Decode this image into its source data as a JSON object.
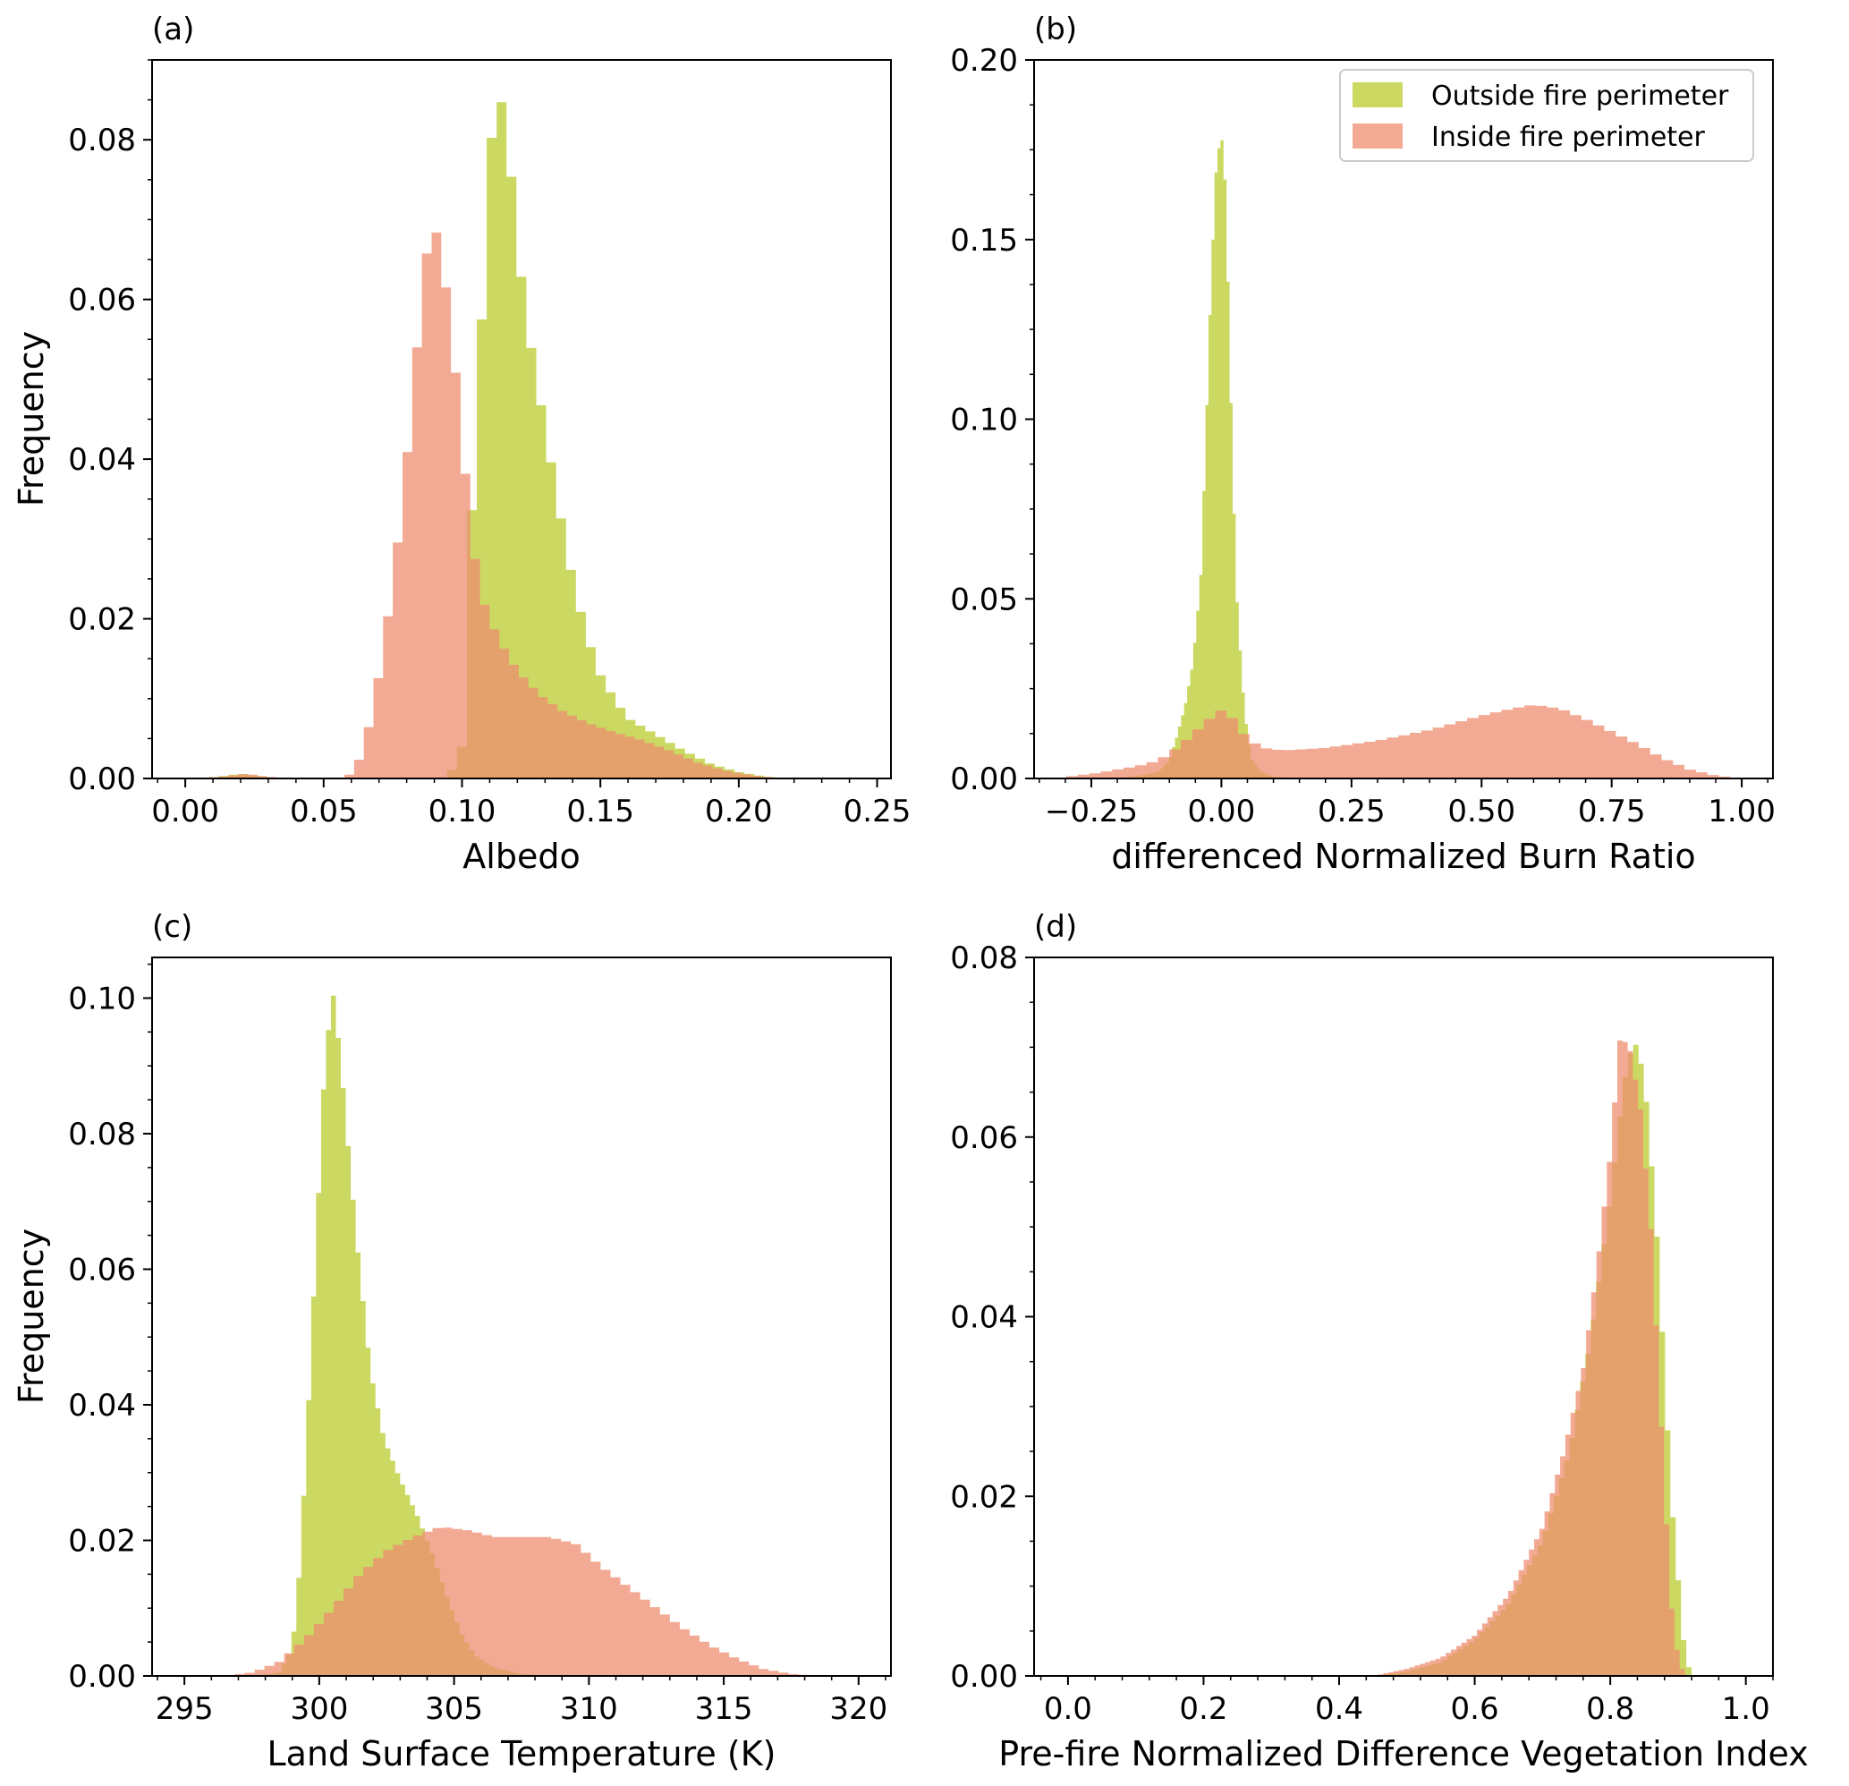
{
  "colors": {
    "outside": "#b9cc2e",
    "inside": "#ee8d70",
    "outside_opacity": 0.75,
    "inside_opacity": 0.75
  },
  "legend": {
    "outside_label": "Outside fire perimeter",
    "inside_label": "Inside fire perimeter",
    "placement": "top-right of panel (b)"
  },
  "chart_data": [
    {
      "panel": "(a)",
      "type": "histogram",
      "xlabel": "Albedo",
      "ylabel": "Frequency",
      "xlim": [
        -0.012,
        0.255
      ],
      "ylim": [
        0,
        0.09
      ],
      "xticks": [
        0.0,
        0.05,
        0.1,
        0.15,
        0.2,
        0.25
      ],
      "xtick_labels": [
        "0.00",
        "0.05",
        "0.10",
        "0.15",
        "0.20",
        "0.25"
      ],
      "yticks": [
        0.0,
        0.02,
        0.04,
        0.06,
        0.08
      ],
      "ytick_labels": [
        "0.00",
        "0.02",
        "0.04",
        "0.06",
        "0.08"
      ],
      "series": [
        {
          "name": "Outside fire perimeter",
          "key": "outside",
          "points": [
            [
              0.005,
              0
            ],
            [
              0.012,
              0.0002
            ],
            [
              0.02,
              0.0006
            ],
            [
              0.028,
              0.0002
            ],
            [
              0.035,
              0
            ],
            [
              0.06,
              0
            ],
            [
              0.095,
              0
            ],
            [
              0.1,
              0.004
            ],
            [
              0.103,
              0.03
            ],
            [
              0.106,
              0.05
            ],
            [
              0.109,
              0.07
            ],
            [
              0.111,
              0.082
            ],
            [
              0.113,
              0.086
            ],
            [
              0.115,
              0.084
            ],
            [
              0.118,
              0.075
            ],
            [
              0.121,
              0.064
            ],
            [
              0.125,
              0.054
            ],
            [
              0.13,
              0.044
            ],
            [
              0.135,
              0.034
            ],
            [
              0.14,
              0.025
            ],
            [
              0.145,
              0.018
            ],
            [
              0.15,
              0.013
            ],
            [
              0.155,
              0.01
            ],
            [
              0.16,
              0.0075
            ],
            [
              0.17,
              0.0055
            ],
            [
              0.18,
              0.0035
            ],
            [
              0.19,
              0.0018
            ],
            [
              0.2,
              0.0008
            ],
            [
              0.21,
              0.0002
            ],
            [
              0.22,
              0
            ]
          ]
        },
        {
          "name": "Inside fire perimeter",
          "key": "inside",
          "points": [
            [
              0.005,
              0
            ],
            [
              0.015,
              0.0003
            ],
            [
              0.022,
              0.0006
            ],
            [
              0.03,
              0.0002
            ],
            [
              0.04,
              0
            ],
            [
              0.058,
              0
            ],
            [
              0.062,
              0.0015
            ],
            [
              0.066,
              0.006
            ],
            [
              0.07,
              0.013
            ],
            [
              0.074,
              0.022
            ],
            [
              0.078,
              0.033
            ],
            [
              0.082,
              0.047
            ],
            [
              0.085,
              0.059
            ],
            [
              0.088,
              0.068
            ],
            [
              0.09,
              0.0698
            ],
            [
              0.092,
              0.066
            ],
            [
              0.095,
              0.06
            ],
            [
              0.098,
              0.05
            ],
            [
              0.101,
              0.039
            ],
            [
              0.104,
              0.029
            ],
            [
              0.107,
              0.023
            ],
            [
              0.11,
              0.02
            ],
            [
              0.114,
              0.017
            ],
            [
              0.12,
              0.0135
            ],
            [
              0.128,
              0.0105
            ],
            [
              0.136,
              0.0085
            ],
            [
              0.145,
              0.007
            ],
            [
              0.155,
              0.0058
            ],
            [
              0.165,
              0.0048
            ],
            [
              0.175,
              0.0035
            ],
            [
              0.185,
              0.002
            ],
            [
              0.195,
              0.001
            ],
            [
              0.205,
              0.0004
            ],
            [
              0.215,
              0
            ]
          ]
        }
      ]
    },
    {
      "panel": "(b)",
      "type": "histogram",
      "xlabel": "differenced Normalized Burn Ratio",
      "ylabel": "",
      "xlim": [
        -0.36,
        1.06
      ],
      "ylim": [
        0,
        0.2
      ],
      "xticks": [
        -0.25,
        0.0,
        0.25,
        0.5,
        0.75,
        1.0
      ],
      "xtick_labels": [
        "−0.25",
        "0.00",
        "0.25",
        "0.50",
        "0.75",
        "1.00"
      ],
      "yticks": [
        0.0,
        0.05,
        0.1,
        0.15,
        0.2
      ],
      "ytick_labels": [
        "0.00",
        "0.05",
        "0.10",
        "0.15",
        "0.20"
      ],
      "series": [
        {
          "name": "Outside fire perimeter",
          "key": "outside",
          "points": [
            [
              -0.2,
              0
            ],
            [
              -0.15,
              0.001
            ],
            [
              -0.12,
              0.002
            ],
            [
              -0.1,
              0.005
            ],
            [
              -0.085,
              0.012
            ],
            [
              -0.07,
              0.02
            ],
            [
              -0.055,
              0.032
            ],
            [
              -0.04,
              0.055
            ],
            [
              -0.03,
              0.095
            ],
            [
              -0.02,
              0.138
            ],
            [
              -0.01,
              0.17
            ],
            [
              0.0,
              0.18
            ],
            [
              0.008,
              0.165
            ],
            [
              0.015,
              0.127
            ],
            [
              0.022,
              0.085
            ],
            [
              0.03,
              0.05
            ],
            [
              0.04,
              0.027
            ],
            [
              0.05,
              0.012
            ],
            [
              0.06,
              0.005
            ],
            [
              0.075,
              0.002
            ],
            [
              0.1,
              0.0005
            ],
            [
              0.15,
              0
            ]
          ]
        },
        {
          "name": "Inside fire perimeter",
          "key": "inside",
          "points": [
            [
              -0.32,
              0
            ],
            [
              -0.28,
              0.0008
            ],
            [
              -0.24,
              0.0015
            ],
            [
              -0.2,
              0.0025
            ],
            [
              -0.16,
              0.0035
            ],
            [
              -0.12,
              0.005
            ],
            [
              -0.08,
              0.009
            ],
            [
              -0.05,
              0.013
            ],
            [
              -0.02,
              0.017
            ],
            [
              0.0,
              0.019
            ],
            [
              0.02,
              0.017
            ],
            [
              0.05,
              0.011
            ],
            [
              0.08,
              0.0085
            ],
            [
              0.12,
              0.0078
            ],
            [
              0.2,
              0.0085
            ],
            [
              0.3,
              0.0105
            ],
            [
              0.4,
              0.0135
            ],
            [
              0.5,
              0.0175
            ],
            [
              0.56,
              0.0195
            ],
            [
              0.6,
              0.0205
            ],
            [
              0.65,
              0.0195
            ],
            [
              0.7,
              0.0165
            ],
            [
              0.75,
              0.013
            ],
            [
              0.8,
              0.0095
            ],
            [
              0.85,
              0.0055
            ],
            [
              0.9,
              0.0025
            ],
            [
              0.95,
              0.0008
            ],
            [
              1.0,
              0
            ]
          ]
        }
      ]
    },
    {
      "panel": "(c)",
      "type": "histogram",
      "xlabel": "Land Surface Temperature (K)",
      "ylabel": "Frequency",
      "xlim": [
        293.8,
        321.2
      ],
      "ylim": [
        0,
        0.106
      ],
      "xticks": [
        295,
        300,
        305,
        310,
        315,
        320
      ],
      "xtick_labels": [
        "295",
        "300",
        "305",
        "310",
        "315",
        "320"
      ],
      "yticks": [
        0.0,
        0.02,
        0.04,
        0.06,
        0.08,
        0.1
      ],
      "ytick_labels": [
        "0.00",
        "0.02",
        "0.04",
        "0.06",
        "0.08",
        "0.10"
      ],
      "series": [
        {
          "name": "Outside fire perimeter",
          "key": "outside",
          "points": [
            [
              297.5,
              0
            ],
            [
              298.5,
              0.0005
            ],
            [
              299.0,
              0.004
            ],
            [
              299.3,
              0.017
            ],
            [
              299.6,
              0.04
            ],
            [
              299.9,
              0.065
            ],
            [
              300.2,
              0.09
            ],
            [
              300.5,
              0.1012
            ],
            [
              300.8,
              0.091
            ],
            [
              301.1,
              0.077
            ],
            [
              301.5,
              0.06
            ],
            [
              301.9,
              0.045
            ],
            [
              302.4,
              0.035
            ],
            [
              303.0,
              0.029
            ],
            [
              303.6,
              0.024
            ],
            [
              304.2,
              0.018
            ],
            [
              304.8,
              0.011
            ],
            [
              305.3,
              0.006
            ],
            [
              305.8,
              0.003
            ],
            [
              306.5,
              0.0012
            ],
            [
              307.5,
              0.0003
            ],
            [
              308.5,
              0
            ]
          ]
        },
        {
          "name": "Inside fire perimeter",
          "key": "inside",
          "points": [
            [
              296.5,
              0
            ],
            [
              297.5,
              0.0005
            ],
            [
              298.5,
              0.002
            ],
            [
              299.5,
              0.0055
            ],
            [
              300.5,
              0.01
            ],
            [
              301.5,
              0.015
            ],
            [
              302.5,
              0.0185
            ],
            [
              303.5,
              0.0205
            ],
            [
              304.5,
              0.022
            ],
            [
              305.5,
              0.0215
            ],
            [
              306.5,
              0.0205
            ],
            [
              307.5,
              0.0205
            ],
            [
              308.5,
              0.0205
            ],
            [
              309.5,
              0.0195
            ],
            [
              310.5,
              0.016
            ],
            [
              311.5,
              0.013
            ],
            [
              312.5,
              0.01
            ],
            [
              313.5,
              0.007
            ],
            [
              314.5,
              0.0045
            ],
            [
              315.5,
              0.0025
            ],
            [
              316.5,
              0.001
            ],
            [
              317.5,
              0.0003
            ],
            [
              318.5,
              0
            ]
          ]
        }
      ]
    },
    {
      "panel": "(d)",
      "type": "histogram",
      "xlabel": "Pre-fire Normalized Difference Vegetation Index",
      "ylabel": "",
      "xlim": [
        -0.05,
        1.04
      ],
      "ylim": [
        0,
        0.08
      ],
      "xticks": [
        0.0,
        0.2,
        0.4,
        0.6,
        0.8,
        1.0
      ],
      "xtick_labels": [
        "0.0",
        "0.2",
        "0.4",
        "0.6",
        "0.8",
        "1.0"
      ],
      "yticks": [
        0.0,
        0.02,
        0.04,
        0.06,
        0.08
      ],
      "ytick_labels": [
        "0.00",
        "0.02",
        "0.04",
        "0.06",
        "0.08"
      ],
      "series": [
        {
          "name": "Outside fire perimeter",
          "key": "outside",
          "points": [
            [
              0.45,
              0
            ],
            [
              0.5,
              0.0005
            ],
            [
              0.55,
              0.0015
            ],
            [
              0.6,
              0.004
            ],
            [
              0.65,
              0.008
            ],
            [
              0.7,
              0.015
            ],
            [
              0.74,
              0.025
            ],
            [
              0.77,
              0.037
            ],
            [
              0.8,
              0.053
            ],
            [
              0.82,
              0.066
            ],
            [
              0.835,
              0.071
            ],
            [
              0.85,
              0.067
            ],
            [
              0.86,
              0.058
            ],
            [
              0.87,
              0.048
            ],
            [
              0.88,
              0.034
            ],
            [
              0.89,
              0.02
            ],
            [
              0.9,
              0.011
            ],
            [
              0.91,
              0.0025
            ],
            [
              0.92,
              0
            ]
          ]
        },
        {
          "name": "Inside fire perimeter",
          "key": "inside",
          "points": [
            [
              0.45,
              0
            ],
            [
              0.5,
              0.0008
            ],
            [
              0.55,
              0.002
            ],
            [
              0.6,
              0.0045
            ],
            [
              0.65,
              0.009
            ],
            [
              0.7,
              0.0165
            ],
            [
              0.73,
              0.0245
            ],
            [
              0.76,
              0.034
            ],
            [
              0.78,
              0.045
            ],
            [
              0.8,
              0.058
            ],
            [
              0.815,
              0.0715
            ],
            [
              0.83,
              0.0695
            ],
            [
              0.845,
              0.063
            ],
            [
              0.86,
              0.05
            ],
            [
              0.87,
              0.036
            ],
            [
              0.88,
              0.021
            ],
            [
              0.89,
              0.008
            ],
            [
              0.9,
              0.002
            ],
            [
              0.91,
              0
            ]
          ]
        }
      ]
    }
  ]
}
